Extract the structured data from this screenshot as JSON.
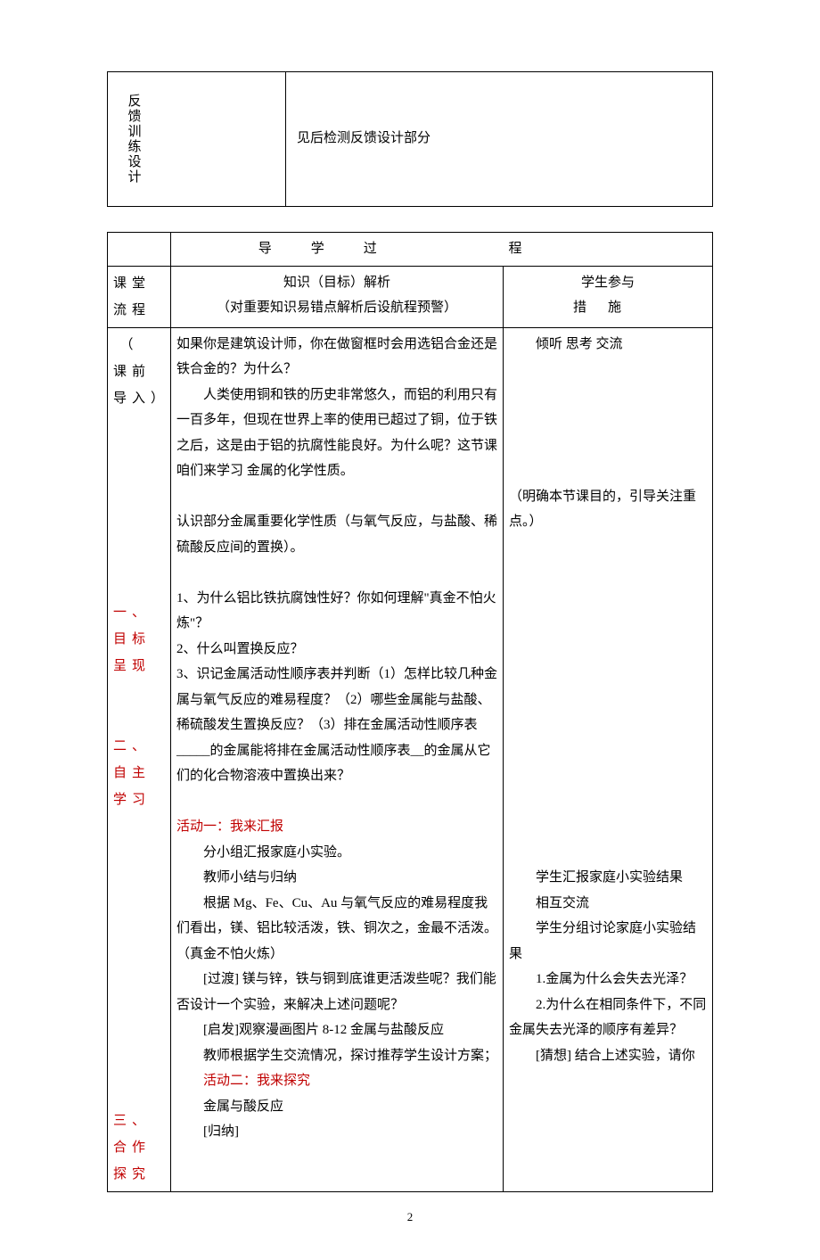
{
  "table1": {
    "left_label": "反馈训练设计",
    "content": "见后检测反馈设计部分"
  },
  "table2": {
    "header_main": "导学过程",
    "flow_label": "课堂流程",
    "parse_label": "知识（目标）解析",
    "parse_sub": "（对重要知识易错点解析后设航程预警）",
    "participate_label": "学生参与",
    "measures_label": "措施",
    "section_intro_label": "（课前导入）",
    "section1_label": "一、目标呈现",
    "section2_label": "二、自主学习",
    "section3_label": "三、合作探究",
    "c2": {
      "p1": "如果你是建筑设计师，你在做窗框时会用选铝合金还是铁合金的？为什么？",
      "p2": "人类使用铜和铁的历史非常悠久，而铝的利用只有一百多年，但现在世界上率的使用已超过了铜，位于铁之后，这是由于铝的抗腐性能良好。为什么呢？这节课咱们来学习 金属的化学性质。",
      "p3": "认识部分金属重要化学性质（与氧气反应，与盐酸、稀硫酸反应间的置换）。",
      "q1": "1、为什么铝比铁抗腐蚀性好？你如何理解\"真金不怕火炼\"？",
      "q2": "2、什么叫置换反应？",
      "q3": "3、识记金属活动性顺序表并判断（1）怎样比较几种金属与氧气反应的难易程度？（2）哪些金属能与盐酸、稀硫酸发生置换反应？（3）排在金属活动性顺序表_____的金属能将排在金属活动性顺序表__的金属从它们的化合物溶液中置换出来？",
      "act1_title": "活动一：我来汇报",
      "act1_l1": "分小组汇报家庭小实验。",
      "act1_l2": "教师小结与归纳",
      "act1_l3": "根据 Mg、Fe、Cu、Au 与氧气反应的难易程度我们看出，镁、铝比较活泼，铁、铜次之，金最不活泼。（真金不怕火炼）",
      "act1_l4": "[过渡] 镁与锌，铁与铜到底谁更活泼些呢？我们能否设计一个实验，来解决上述问题呢？",
      "act1_l5": "[启发]观察漫画图片 8-12 金属与盐酸反应",
      "act1_l6": "教师根据学生交流情况，探讨推荐学生设计方案；",
      "act2_title": "活动二：我来探究",
      "act2_l1": "金属与酸反应",
      "act2_l2": "[归纳]"
    },
    "c3": {
      "r1": "倾听 思考 交流",
      "r2": "（明确本节课目的，引导关注重点。）",
      "r3": "学生汇报家庭小实验结果",
      "r4": "相互交流",
      "r5": "学生分组讨论家庭小实验结果",
      "r6": "1.金属为什么会失去光泽？",
      "r7": "2.为什么在相同条件下，不同金属失去光泽的顺序有差异？",
      "r8": "[猜想] 结合上述实验，请你"
    }
  },
  "page_number": "2"
}
